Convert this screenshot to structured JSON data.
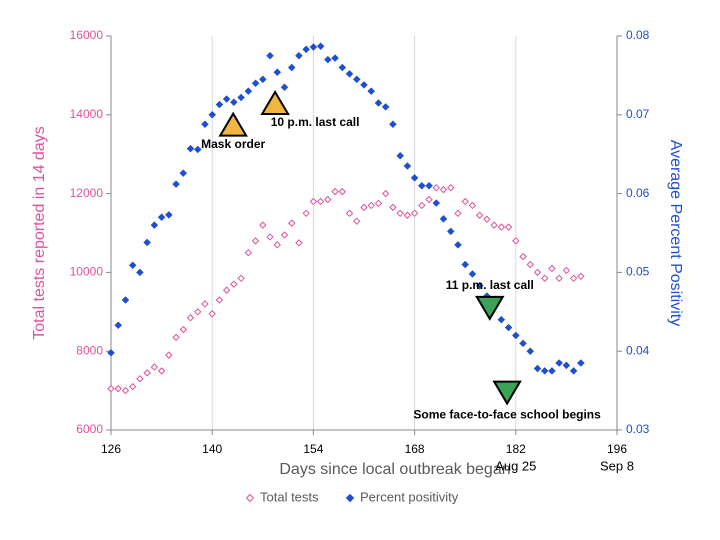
{
  "chart_data": {
    "type": "scatter",
    "x_label": "Days since local outbreak began",
    "y_label": "Total tests reported in 14 days",
    "y2_label": "Average Percent Positivity",
    "x": [
      126,
      127,
      128,
      129,
      130,
      131,
      132,
      133,
      134,
      135,
      136,
      137,
      138,
      139,
      140,
      141,
      142,
      143,
      144,
      145,
      146,
      147,
      148,
      149,
      150,
      151,
      152,
      153,
      154,
      155,
      156,
      157,
      158,
      159,
      160,
      161,
      162,
      163,
      164,
      165,
      166,
      167,
      168,
      169,
      170,
      171,
      172,
      173,
      174,
      175,
      176,
      177,
      178,
      179,
      180,
      181,
      182,
      183,
      184,
      185,
      186,
      187,
      188,
      189,
      190,
      191
    ],
    "series": [
      {
        "name": "Total tests",
        "color": "#e0529c",
        "marker": "hollow",
        "values": [
          7050,
          7050,
          7000,
          7100,
          7300,
          7450,
          7600,
          7500,
          7900,
          8350,
          8550,
          8850,
          9000,
          9200,
          8950,
          9300,
          9550,
          9700,
          9850,
          10500,
          10800,
          11200,
          10900,
          10700,
          10950,
          11250,
          10750,
          11500,
          11800,
          11800,
          11850,
          12050,
          12050,
          11500,
          11300,
          11650,
          11700,
          11750,
          12000,
          11650,
          11500,
          11450,
          11500,
          11700,
          11850,
          12150,
          12100,
          12150,
          11500,
          11800,
          11700,
          11450,
          11350,
          11200,
          11150,
          11150,
          10800,
          10400,
          10200,
          10000,
          9850,
          10100,
          9850,
          10050,
          9850,
          9900
        ]
      },
      {
        "name": "Percent positivity",
        "color": "#1f4fd1",
        "marker": "filled",
        "axis": "y2",
        "values": [
          0.0398,
          0.0433,
          0.0465,
          0.0509,
          0.05,
          0.0538,
          0.056,
          0.057,
          0.0573,
          0.0612,
          0.0626,
          0.0657,
          0.0656,
          0.0688,
          0.07,
          0.0713,
          0.072,
          0.0716,
          0.0722,
          0.073,
          0.074,
          0.0745,
          0.0775,
          0.0754,
          0.0735,
          0.076,
          0.0775,
          0.0783,
          0.0786,
          0.0787,
          0.077,
          0.0772,
          0.076,
          0.0752,
          0.0745,
          0.0738,
          0.073,
          0.0715,
          0.071,
          0.0688,
          0.0648,
          0.0635,
          0.062,
          0.061,
          0.061,
          0.0588,
          0.0568,
          0.0552,
          0.0535,
          0.051,
          0.0498,
          0.0483,
          0.047,
          0.046,
          0.044,
          0.043,
          0.042,
          0.041,
          0.04,
          0.0378,
          0.0375,
          0.0375,
          0.0385,
          0.0382,
          0.0375,
          0.0385
        ]
      }
    ],
    "xlim": [
      126,
      196
    ],
    "xticks": [
      126,
      140,
      154,
      168,
      182,
      196
    ],
    "date_labels": [
      {
        "value": 182,
        "label": "Aug 25"
      },
      {
        "value": 196,
        "label": "Sep 8"
      }
    ],
    "ylim": [
      6000,
      16000
    ],
    "yticks": [
      6000,
      8000,
      10000,
      12000,
      14000,
      16000
    ],
    "y2lim": [
      0.03,
      0.08
    ],
    "y2ticks": [
      0.03,
      0.04,
      0.05,
      0.06,
      0.07,
      0.08
    ],
    "grid": true,
    "legend": "bottom",
    "annotations": [
      {
        "text": "Mask order",
        "x": 142.9,
        "y": 13750,
        "marker": "up",
        "color": "#f2b640"
      },
      {
        "text": "10 p.m. last call",
        "x": 148.7,
        "y": 14300,
        "marker": "up",
        "color": "#f2b640"
      },
      {
        "text": "11 p.m. last call",
        "x": 178.4,
        "y": 9100,
        "marker": "down",
        "color": "#3aa358"
      },
      {
        "text": "Some face-to-face school begins",
        "x": 180.8,
        "y": 6950,
        "marker": "down",
        "color": "#3aa358"
      }
    ]
  }
}
